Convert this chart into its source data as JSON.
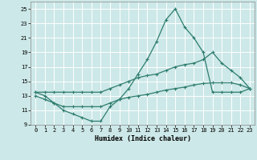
{
  "xlabel": "Humidex (Indice chaleur)",
  "xlim": [
    -0.5,
    23.5
  ],
  "ylim": [
    9,
    26
  ],
  "yticks": [
    9,
    11,
    13,
    15,
    17,
    19,
    21,
    23,
    25
  ],
  "xticks": [
    0,
    1,
    2,
    3,
    4,
    5,
    6,
    7,
    8,
    9,
    10,
    11,
    12,
    13,
    14,
    15,
    16,
    17,
    18,
    19,
    20,
    21,
    22,
    23
  ],
  "line_color": "#2e7d6e",
  "background_color": "#cde8e8",
  "grid_color": "#b0d8d8",
  "lines": [
    {
      "x": [
        0,
        1,
        2,
        3,
        4,
        5,
        6,
        7,
        8,
        9,
        10,
        11,
        12,
        13,
        14,
        15,
        16,
        17,
        18,
        19,
        20,
        21,
        22,
        23
      ],
      "y": [
        13.5,
        13.0,
        12.0,
        11.0,
        10.5,
        10.0,
        9.5,
        9.5,
        11.5,
        12.5,
        14.0,
        16.0,
        18.0,
        20.5,
        23.5,
        25.0,
        22.5,
        21.0,
        19.0,
        13.5,
        13.5,
        13.5,
        13.5,
        14.0
      ]
    },
    {
      "x": [
        0,
        1,
        2,
        3,
        4,
        5,
        6,
        7,
        8,
        9,
        10,
        11,
        12,
        13,
        14,
        15,
        16,
        17,
        18,
        19,
        20,
        21,
        22,
        23
      ],
      "y": [
        13.5,
        13.5,
        13.5,
        13.5,
        13.5,
        13.5,
        13.5,
        13.5,
        14.0,
        14.5,
        15.0,
        15.5,
        15.8,
        16.0,
        16.5,
        17.0,
        17.3,
        17.5,
        18.0,
        19.0,
        17.5,
        16.5,
        15.5,
        14.0
      ]
    },
    {
      "x": [
        0,
        1,
        2,
        3,
        4,
        5,
        6,
        7,
        8,
        9,
        10,
        11,
        12,
        13,
        14,
        15,
        16,
        17,
        18,
        19,
        20,
        21,
        22,
        23
      ],
      "y": [
        13.0,
        12.5,
        12.0,
        11.5,
        11.5,
        11.5,
        11.5,
        11.5,
        12.0,
        12.5,
        12.8,
        13.0,
        13.2,
        13.5,
        13.8,
        14.0,
        14.2,
        14.5,
        14.7,
        14.8,
        14.8,
        14.8,
        14.5,
        14.0
      ]
    }
  ]
}
